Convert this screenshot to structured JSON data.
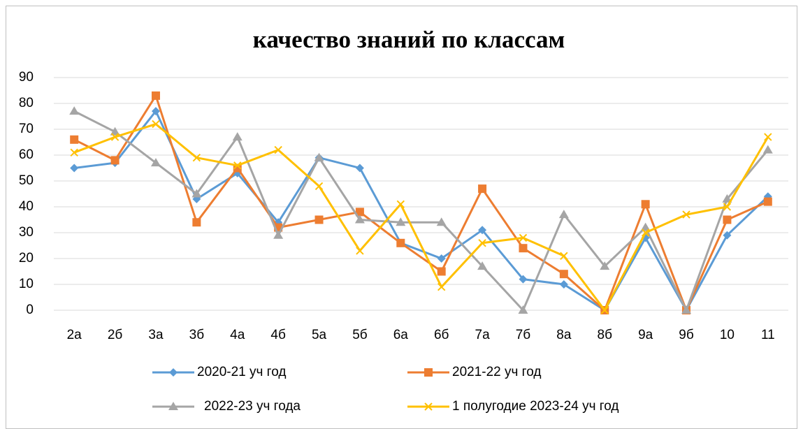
{
  "chart_data": {
    "type": "line",
    "title": "качество знаний по классам",
    "categories": [
      "2а",
      "2б",
      "3а",
      "3б",
      "4а",
      "4б",
      "5а",
      "5б",
      "6а",
      "6б",
      "7а",
      "7б",
      "8а",
      "8б",
      "9а",
      "9б",
      "10",
      "11"
    ],
    "series": [
      {
        "name": "2020-21 уч год",
        "color": "#5b9bd5",
        "marker": "diamond",
        "values": [
          55,
          57,
          77,
          43,
          53,
          34,
          59,
          55,
          26,
          20,
          31,
          12,
          10,
          0,
          28,
          0,
          29,
          44
        ]
      },
      {
        "name": "2021-22 уч год",
        "color": "#ed7d31",
        "marker": "square",
        "values": [
          66,
          58,
          83,
          34,
          55,
          32,
          35,
          38,
          26,
          15,
          47,
          24,
          14,
          0,
          41,
          0,
          35,
          42
        ]
      },
      {
        "name": "2022-23 уч года",
        "color": "#a5a5a5",
        "marker": "triangle",
        "values": [
          77,
          69,
          57,
          45,
          67,
          29,
          59,
          35,
          34,
          34,
          17,
          0,
          37,
          17,
          32,
          0,
          43,
          62
        ]
      },
      {
        "name": "1 полугодие 2023-24 уч год",
        "color": "#ffc000",
        "marker": "x",
        "values": [
          61,
          67,
          72,
          59,
          56,
          62,
          48,
          23,
          41,
          9,
          26,
          28,
          21,
          0,
          30,
          37,
          40,
          67
        ]
      }
    ],
    "ylim": [
      0,
      90
    ],
    "yticks": [
      0,
      10,
      20,
      30,
      40,
      50,
      60,
      70,
      80,
      90
    ],
    "grid": true,
    "legend": "bottom"
  }
}
